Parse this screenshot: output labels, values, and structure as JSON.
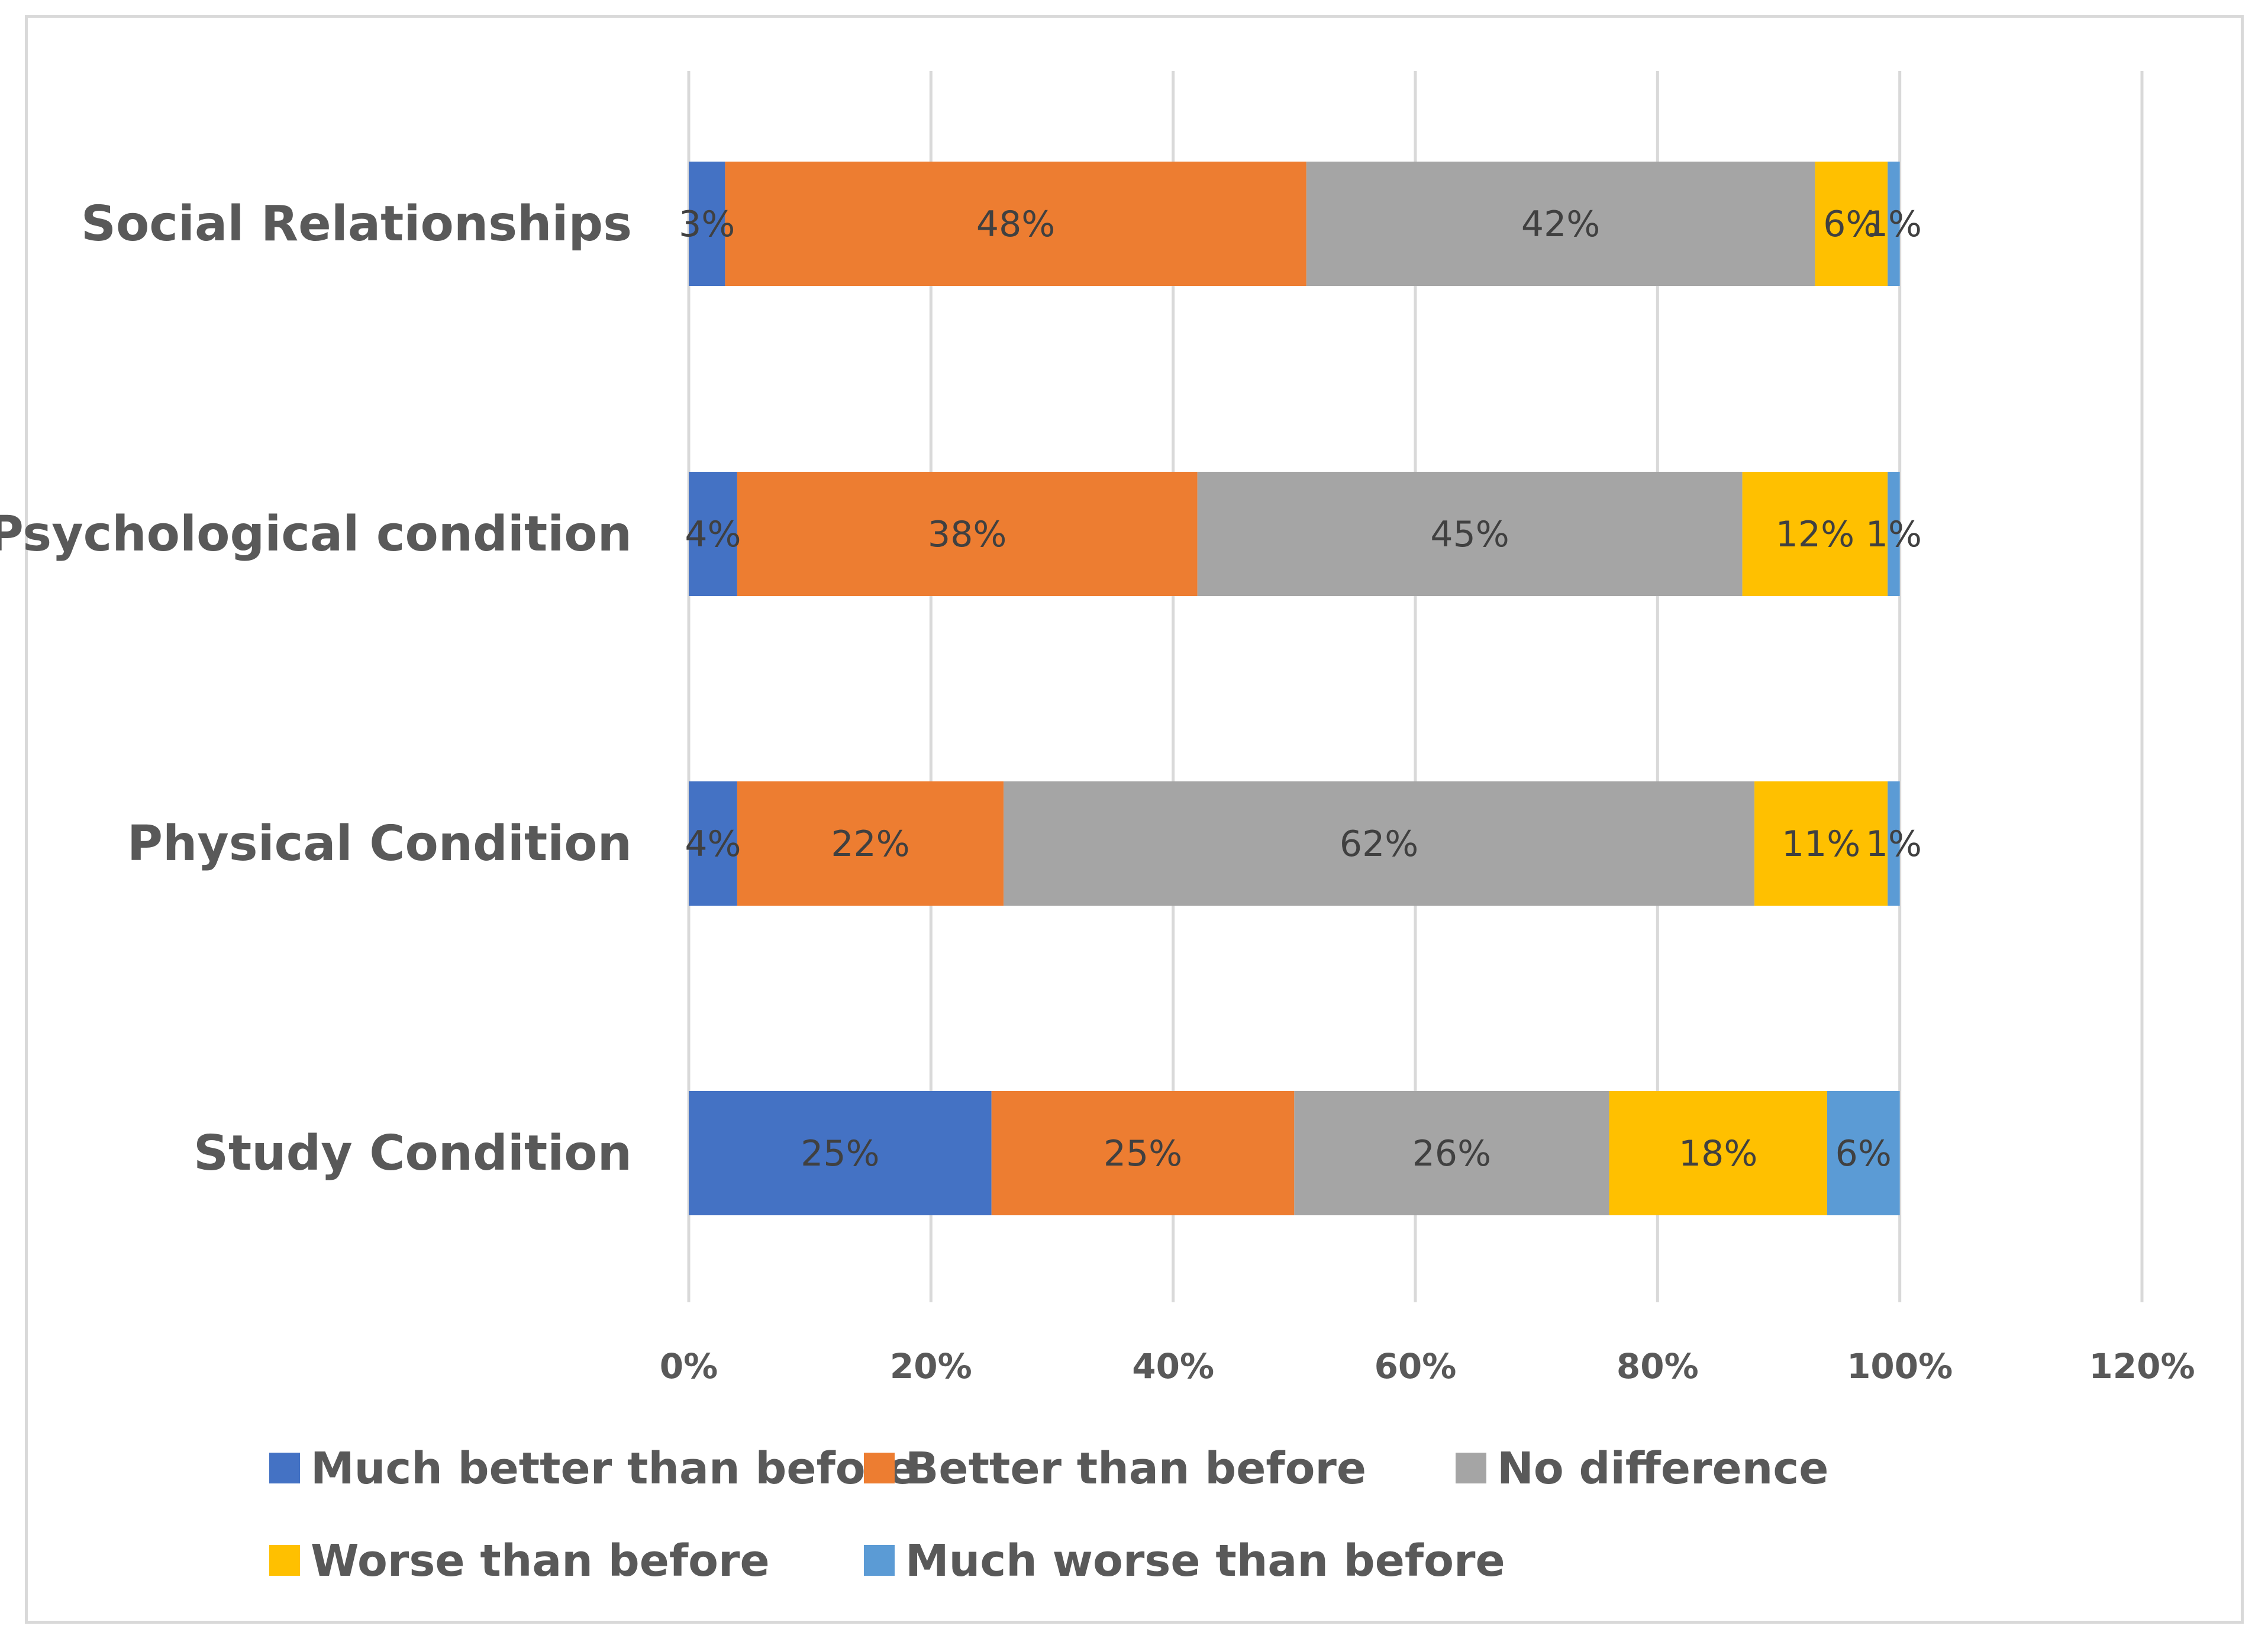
{
  "chart_data": {
    "type": "bar",
    "orientation": "horizontal",
    "stacked": true,
    "categories": [
      "Social Relationships",
      "Psychological condition",
      "Physical Condition",
      "Study Condition"
    ],
    "series": [
      {
        "name": "Much better than before",
        "color": "#4472C4",
        "values": [
          3,
          4,
          4,
          25
        ],
        "labels": [
          "3%",
          "4%",
          "4%",
          "25%"
        ]
      },
      {
        "name": "Better than before",
        "color": "#ED7D31",
        "values": [
          48,
          38,
          22,
          25
        ],
        "labels": [
          "48%",
          "38%",
          "22%",
          "25%"
        ]
      },
      {
        "name": "No difference",
        "color": "#A5A5A5",
        "values": [
          42,
          45,
          62,
          26
        ],
        "labels": [
          "42%",
          "45%",
          "62%",
          "26%"
        ]
      },
      {
        "name": "Worse than before",
        "color": "#FFC000",
        "values": [
          6,
          12,
          11,
          18
        ],
        "labels": [
          "6%",
          "12%",
          "11%",
          "18%"
        ]
      },
      {
        "name": "Much worse than before",
        "color": "#5B9BD5",
        "values": [
          1,
          1,
          1,
          6
        ],
        "labels": [
          "1%",
          "1%",
          "1%",
          "6%"
        ]
      }
    ],
    "xlim": [
      0,
      120
    ],
    "xticks": [
      0,
      20,
      40,
      60,
      80,
      100,
      120
    ],
    "xtick_labels": [
      "0%",
      "20%",
      "40%",
      "60%",
      "80%",
      "100%",
      "120%"
    ],
    "grid": "vertical",
    "legend_position": "bottom",
    "title": "",
    "xlabel": "",
    "ylabel": ""
  }
}
